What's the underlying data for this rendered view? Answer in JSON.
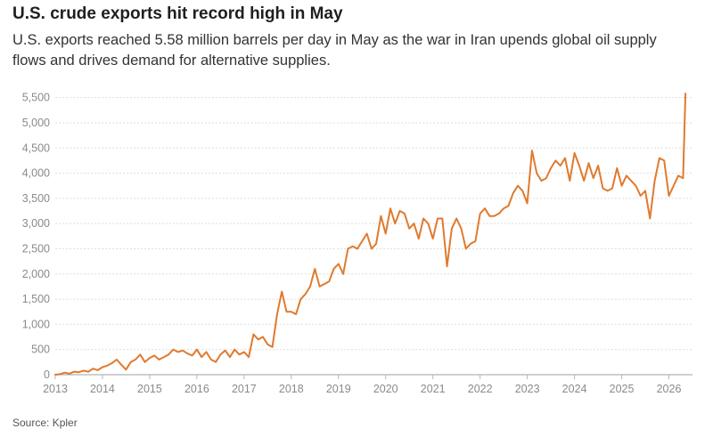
{
  "header": {
    "title": "U.S. crude exports hit record high in May",
    "subtitle": "U.S. exports reached 5.58 million barrels per day in May as the war in Iran upends global oil supply flows and drives demand for alternative supplies."
  },
  "footer": {
    "source": "Source: Kpler"
  },
  "chart_data": {
    "type": "line",
    "title": "U.S. crude exports hit record high in May",
    "subtitle": "U.S. exports reached 5.58 million barrels per day in May as the war in Iran upends global oil supply flows and drives demand for alternative supplies.",
    "xlabel": "",
    "ylabel": "",
    "x_ticks": [
      "2013",
      "2014",
      "2015",
      "2016",
      "2017",
      "2018",
      "2019",
      "2020",
      "2021",
      "2022",
      "2023",
      "2024",
      "2025",
      "2026"
    ],
    "y_ticks": [
      "0",
      "500",
      "1,000",
      "1,500",
      "2,000",
      "2,500",
      "3,000",
      "3,500",
      "4,000",
      "4,500",
      "5,000",
      "5,500"
    ],
    "xlim": [
      2013.0,
      2026.5
    ],
    "ylim": [
      0,
      5600
    ],
    "grid": true,
    "legend": "none",
    "line_color": "#e07a2e",
    "series": [
      {
        "name": "",
        "x": [
          2013.0,
          2013.1,
          2013.2,
          2013.3,
          2013.4,
          2013.5,
          2013.6,
          2013.7,
          2013.8,
          2013.9,
          2014.0,
          2014.1,
          2014.2,
          2014.3,
          2014.4,
          2014.5,
          2014.6,
          2014.7,
          2014.8,
          2014.9,
          2015.0,
          2015.1,
          2015.2,
          2015.3,
          2015.4,
          2015.5,
          2015.6,
          2015.7,
          2015.8,
          2015.9,
          2016.0,
          2016.1,
          2016.2,
          2016.3,
          2016.4,
          2016.5,
          2016.6,
          2016.7,
          2016.8,
          2016.9,
          2017.0,
          2017.1,
          2017.2,
          2017.3,
          2017.4,
          2017.5,
          2017.6,
          2017.7,
          2017.8,
          2017.9,
          2018.0,
          2018.1,
          2018.2,
          2018.3,
          2018.4,
          2018.5,
          2018.6,
          2018.7,
          2018.8,
          2018.9,
          2019.0,
          2019.1,
          2019.2,
          2019.3,
          2019.4,
          2019.5,
          2019.6,
          2019.7,
          2019.8,
          2019.9,
          2020.0,
          2020.1,
          2020.2,
          2020.3,
          2020.4,
          2020.5,
          2020.6,
          2020.7,
          2020.8,
          2020.9,
          2021.0,
          2021.1,
          2021.2,
          2021.3,
          2021.4,
          2021.5,
          2021.6,
          2021.7,
          2021.8,
          2021.9,
          2022.0,
          2022.1,
          2022.2,
          2022.3,
          2022.4,
          2022.5,
          2022.6,
          2022.7,
          2022.8,
          2022.9,
          2023.0,
          2023.1,
          2023.2,
          2023.3,
          2023.4,
          2023.5,
          2023.6,
          2023.7,
          2023.8,
          2023.9,
          2024.0,
          2024.1,
          2024.2,
          2024.3,
          2024.4,
          2024.5,
          2024.6,
          2024.7,
          2024.8,
          2024.9,
          2025.0,
          2025.1,
          2025.2,
          2025.3,
          2025.4,
          2025.5,
          2025.6,
          2025.7,
          2025.8,
          2025.9,
          2026.0,
          2026.1,
          2026.2,
          2026.3,
          2026.35
        ],
        "values": [
          0,
          10,
          40,
          20,
          60,
          50,
          80,
          60,
          120,
          90,
          150,
          180,
          230,
          300,
          200,
          100,
          250,
          300,
          400,
          250,
          330,
          380,
          300,
          350,
          400,
          500,
          450,
          480,
          420,
          380,
          500,
          350,
          450,
          300,
          250,
          400,
          480,
          350,
          500,
          400,
          450,
          350,
          800,
          700,
          750,
          600,
          550,
          1200,
          1650,
          1250,
          1250,
          1200,
          1500,
          1600,
          1750,
          2100,
          1750,
          1800,
          1850,
          2100,
          2200,
          2000,
          2500,
          2550,
          2500,
          2650,
          2800,
          2500,
          2600,
          3150,
          2800,
          3300,
          3000,
          3250,
          3200,
          2900,
          3000,
          2700,
          3100,
          3000,
          2700,
          3100,
          3100,
          2150,
          2900,
          3100,
          2900,
          2500,
          2600,
          2650,
          3200,
          3300,
          3150,
          3150,
          3200,
          3300,
          3350,
          3600,
          3750,
          3650,
          3400,
          4450,
          4000,
          3850,
          3900,
          4100,
          4250,
          4150,
          4300,
          3850,
          4400,
          4150,
          3850,
          4200,
          3900,
          4150,
          3700,
          3650,
          3700,
          4100,
          3750,
          3950,
          3850,
          3750,
          3550,
          3650,
          3100,
          3850,
          4300,
          4250,
          3550,
          3750,
          3950,
          3900,
          5580
        ]
      }
    ]
  }
}
